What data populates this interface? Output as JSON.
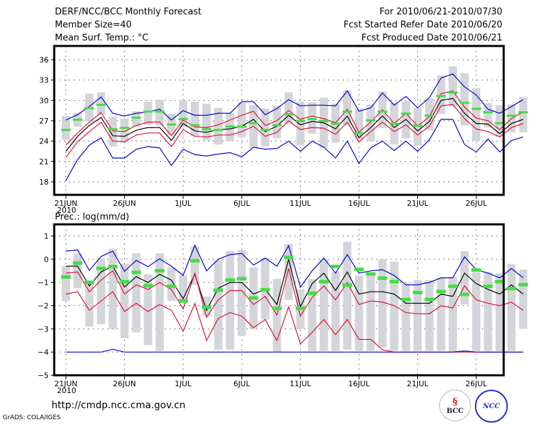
{
  "header": {
    "title": "DERF/NCC/BCC Monthly Forecast",
    "member_size": "Member Size=40",
    "variable": "Mean Surf. Temp.: °C",
    "period": "For 2010/06/21-2010/07/30",
    "started": "Fcst Started Refer Date 2010/06/20",
    "produced": "Fcst Produced Date 2010/06/21"
  },
  "footer": {
    "url": "http://cmdp.ncc.cma.gov.cn",
    "credit": "GrADS: COLA/IGES",
    "logo_bcc": "BCC",
    "logo_ncc": "NCC"
  },
  "colors": {
    "max_min": "#0000cc",
    "spread": "#dd1133",
    "mean": "#000000",
    "obs_mark": "#44dd44",
    "box": "#d3d5da"
  },
  "chart_data": [
    {
      "type": "line",
      "title": "Mean Surf. Temp.: °C",
      "xlabel": "",
      "ylabel": "",
      "year_label": "2010",
      "x_ticks": [
        "21JUN",
        "26JUN",
        "1JUL",
        "6JUL",
        "11JUL",
        "16JUL",
        "21JUL",
        "26JUL"
      ],
      "x_tick_days": [
        0,
        5,
        10,
        15,
        20,
        25,
        30,
        35
      ],
      "y_ticks": [
        18,
        21,
        24,
        27,
        30,
        33,
        36
      ],
      "ylim": [
        15.8,
        37.8
      ],
      "grid": true,
      "n_days": 40,
      "series": [
        {
          "name": "max",
          "values": [
            18.2,
            21.3,
            23.4,
            24.5,
            21.5,
            21.5,
            22.8,
            23.2,
            23.0,
            20.4,
            22.8,
            22.0,
            21.8,
            22.1,
            22.3,
            21.7,
            23.1,
            22.8,
            22.9,
            24.0,
            22.5,
            24.0,
            23.1,
            21.5,
            24.0,
            20.7,
            23.0,
            24.0,
            22.6,
            24.0,
            22.5,
            24.2,
            27.2,
            27.2,
            23.5,
            22.4,
            24.3,
            22.4,
            24.1,
            24.6
          ]
        },
        {
          "name": "min_upper",
          "values": [
            27.1,
            27.9,
            29.1,
            30.5,
            28.1,
            27.7,
            28.1,
            28.3,
            28.7,
            27.1,
            28.5,
            27.8,
            27.8,
            28.1,
            28.1,
            29.8,
            29.8,
            27.9,
            28.8,
            30.1,
            29.2,
            29.3,
            29.3,
            29.2,
            31.4,
            28.4,
            28.9,
            31.1,
            29.3,
            30.6,
            28.9,
            30.4,
            33.3,
            33.9,
            32.0,
            30.8,
            28.7,
            28.1,
            29.1,
            30.1
          ]
        },
        {
          "name": "spread_upper",
          "values": [
            23.4,
            25.2,
            26.8,
            28.2,
            25.5,
            25.4,
            26.3,
            26.8,
            26.8,
            24.8,
            27.1,
            26.1,
            26.0,
            26.4,
            27.1,
            27.8,
            28.4,
            26.3,
            27.0,
            28.5,
            27.2,
            27.7,
            27.3,
            26.7,
            28.7,
            25.3,
            26.8,
            28.6,
            26.6,
            28.1,
            26.2,
            27.6,
            31.0,
            31.4,
            29.0,
            27.4,
            27.0,
            25.7,
            27.3,
            28.3
          ]
        },
        {
          "name": "ensemble_mean",
          "values": [
            22.5,
            24.7,
            26.3,
            27.5,
            24.8,
            24.7,
            25.6,
            26.0,
            26.0,
            24.1,
            26.6,
            25.5,
            25.3,
            25.7,
            25.8,
            26.2,
            27.2,
            25.4,
            26.2,
            27.8,
            26.4,
            26.9,
            26.7,
            25.8,
            27.7,
            24.5,
            26.0,
            27.7,
            26.0,
            27.2,
            25.5,
            26.9,
            30.0,
            30.3,
            28.1,
            26.6,
            26.5,
            25.1,
            26.6,
            27.2
          ]
        },
        {
          "name": "spread_lower",
          "values": [
            21.6,
            23.9,
            25.4,
            26.8,
            24.0,
            23.9,
            24.9,
            25.2,
            25.2,
            23.2,
            25.7,
            24.7,
            24.6,
            24.9,
            24.9,
            25.4,
            26.2,
            24.7,
            25.3,
            27.0,
            25.7,
            26.0,
            25.9,
            25.0,
            26.8,
            23.9,
            25.4,
            26.8,
            25.4,
            26.4,
            24.9,
            26.2,
            29.2,
            29.4,
            27.3,
            25.8,
            25.4,
            24.6,
            26.0,
            26.6
          ]
        },
        {
          "name": "observed_climate",
          "values": [
            25.6,
            27.1,
            28.8,
            29.3,
            25.7,
            25.9,
            27.4,
            28.3,
            28.3,
            26.4,
            27.2,
            26.3,
            25.7,
            25.6,
            26.1,
            26.1,
            26.6,
            25.6,
            26.3,
            27.9,
            26.9,
            27.2,
            26.9,
            26.5,
            28.3,
            25.1,
            27.0,
            28.3,
            26.5,
            28.0,
            26.2,
            27.7,
            30.6,
            31.1,
            29.6,
            28.7,
            28.2,
            26.6,
            27.7,
            28.2
          ]
        },
        {
          "name": "box_p25",
          "values": [
            24.2,
            26.1,
            26.9,
            27.9,
            23.2,
            23.8,
            26.1,
            26.4,
            26.3,
            24.9,
            26.1,
            24.8,
            24.1,
            23.5,
            24.0,
            24.6,
            23.0,
            23.2,
            24.4,
            26.5,
            23.4,
            25.1,
            23.0,
            23.8,
            26.3,
            24.3,
            24.0,
            25.9,
            23.5,
            24.4,
            23.3,
            25.6,
            28.0,
            29.1,
            26.3,
            24.0,
            26.0,
            24.7,
            25.3,
            25.3
          ]
        },
        {
          "name": "box_p75",
          "values": [
            27.7,
            28.2,
            31.0,
            31.2,
            27.6,
            27.3,
            28.4,
            29.8,
            30.1,
            28.0,
            30.0,
            29.8,
            29.5,
            28.9,
            28.1,
            29.7,
            29.3,
            28.8,
            29.2,
            31.2,
            29.8,
            29.7,
            30.4,
            29.5,
            31.5,
            28.8,
            29.4,
            31.3,
            29.6,
            29.9,
            28.9,
            30.3,
            33.7,
            35.0,
            34.0,
            31.8,
            29.6,
            29.3,
            29.4,
            30.5
          ]
        }
      ]
    },
    {
      "type": "line",
      "title": "Prec.: log(mm/d)",
      "xlabel": "",
      "ylabel": "",
      "year_label": "2010",
      "x_ticks": [
        "21JUN",
        "26JUN",
        "1JUL",
        "6JUL",
        "11JUL",
        "16JUL",
        "21JUL",
        "26JUL"
      ],
      "x_tick_days": [
        0,
        5,
        10,
        15,
        20,
        25,
        30,
        35
      ],
      "y_ticks": [
        -5,
        -4,
        -3,
        -2,
        -1,
        0,
        1
      ],
      "ylim": [
        -5,
        1.5
      ],
      "grid": true,
      "n_days": 40,
      "series": [
        {
          "name": "max",
          "values": [
            0.35,
            0.4,
            -0.48,
            0.12,
            0.35,
            -0.52,
            -0.05,
            -0.32,
            0.02,
            -0.3,
            -0.7,
            0.6,
            -0.5,
            0.0,
            0.2,
            0.25,
            -0.25,
            0.05,
            -0.3,
            0.58,
            -1.2,
            -0.5,
            0.05,
            -0.6,
            0.2,
            -0.6,
            -0.5,
            -0.45,
            -0.7,
            -1.1,
            -1.1,
            -1.0,
            -0.8,
            -0.8,
            0.1,
            -0.45,
            -0.6,
            -0.8,
            -0.4,
            -0.8
          ]
        },
        {
          "name": "ensemble_mean",
          "values": [
            -0.3,
            -0.3,
            -1.15,
            -0.55,
            -0.3,
            -1.2,
            -0.75,
            -1.0,
            -0.65,
            -0.9,
            -1.7,
            -0.65,
            -2.2,
            -1.25,
            -1.0,
            -1.0,
            -1.5,
            -1.3,
            -1.95,
            -0.0,
            -2.05,
            -1.05,
            -0.6,
            -1.35,
            -0.55,
            -1.5,
            -1.4,
            -1.4,
            -1.5,
            -1.9,
            -1.9,
            -1.9,
            -1.5,
            -1.6,
            -0.6,
            -1.05,
            -1.3,
            -1.5,
            -1.1,
            -1.5
          ]
        },
        {
          "name": "spread_upper",
          "values": [
            -0.6,
            -0.55,
            -1.4,
            -0.9,
            -0.5,
            -1.5,
            -1.1,
            -1.3,
            -1.0,
            -1.3,
            -2.15,
            -0.6,
            -2.5,
            -1.75,
            -1.35,
            -1.35,
            -1.95,
            -1.6,
            -2.4,
            -0.4,
            -2.45,
            -1.65,
            -1.15,
            -1.75,
            -1.0,
            -1.95,
            -1.8,
            -1.85,
            -2.0,
            -2.3,
            -2.35,
            -2.35,
            -2.0,
            -2.1,
            -1.15,
            -1.75,
            -1.9,
            -2.0,
            -1.85,
            -2.2
          ]
        },
        {
          "name": "spread_lower",
          "values": [
            -1.5,
            -1.4,
            -2.2,
            -1.8,
            -1.4,
            -2.25,
            -1.9,
            -2.25,
            -1.95,
            -2.2,
            -3.1,
            -1.9,
            -3.5,
            -2.55,
            -2.3,
            -2.45,
            -2.95,
            -2.6,
            -3.5,
            -2.05,
            -3.65,
            -3.15,
            -2.6,
            -3.25,
            -2.6,
            -3.45,
            -3.45,
            -3.9,
            -4.0,
            -4.0,
            -4.0,
            -4.0,
            -4.0,
            -4.0,
            -4.0,
            -4.0,
            -4.0,
            -4.0,
            -4.0,
            -4.0
          ]
        },
        {
          "name": "min",
          "values": [
            -4.0,
            -4.0,
            -4.0,
            -4.0,
            -3.88,
            -4.0,
            -4.0,
            -4.0,
            -4.0,
            -4.0,
            -4.0,
            -4.0,
            -4.0,
            -4.0,
            -4.0,
            -4.0,
            -4.0,
            -4.0,
            -4.0,
            -4.0,
            -4.0,
            -4.0,
            -4.0,
            -4.0,
            -4.0,
            -4.0,
            -4.0,
            -4.0,
            -4.0,
            -4.0,
            -4.0,
            -4.0,
            -4.0,
            -4.0,
            -3.95,
            -4.0,
            -4.0,
            -4.0,
            -4.0,
            -4.0
          ]
        },
        {
          "name": "observed_climate",
          "values": [
            -0.75,
            -0.15,
            -0.98,
            -0.38,
            -0.3,
            -0.95,
            -0.55,
            -1.12,
            -0.48,
            -1.15,
            -1.78,
            -0.05,
            -2.05,
            -1.32,
            -0.88,
            -0.82,
            -1.65,
            -1.3,
            -2.1,
            0.1,
            -2.1,
            -1.45,
            -0.95,
            -0.3,
            -1.1,
            -0.42,
            -0.62,
            -0.8,
            -0.95,
            -1.72,
            -1.42,
            -1.72,
            -1.38,
            -1.15,
            -1.5,
            -0.45,
            -1.15,
            -0.95,
            -1.25,
            -1.08
          ]
        },
        {
          "name": "box_p25",
          "values": [
            -1.8,
            -1.25,
            -2.9,
            -2.8,
            -3.0,
            -3.4,
            -3.15,
            -3.7,
            -3.95,
            -1.8,
            -1.9,
            -1.1,
            -2.45,
            -3.9,
            -3.9,
            -3.3,
            -3.0,
            -2.6,
            -4.0,
            -1.75,
            -3.0,
            -3.95,
            -3.95,
            -3.95,
            -3.9,
            -3.95,
            -3.95,
            -3.8,
            -3.95,
            -3.95,
            -3.95,
            -3.95,
            -3.95,
            -4.0,
            -1.95,
            -3.95,
            -3.95,
            -3.95,
            -3.95,
            -3.0
          ]
        },
        {
          "name": "box_p75",
          "values": [
            -0.3,
            0.25,
            -0.95,
            0.05,
            0.45,
            -0.2,
            0.25,
            -0.65,
            0.25,
            -0.35,
            -0.7,
            0.55,
            -1.6,
            -0.05,
            0.35,
            0.4,
            -0.35,
            0.05,
            -0.85,
            0.65,
            -1.3,
            -0.85,
            0.0,
            -0.55,
            0.75,
            -0.7,
            -0.7,
            0.0,
            -0.1,
            -1.05,
            -0.9,
            -0.9,
            -0.8,
            -0.75,
            0.35,
            -0.55,
            -0.55,
            -0.6,
            -0.2,
            -0.45
          ]
        }
      ]
    }
  ]
}
